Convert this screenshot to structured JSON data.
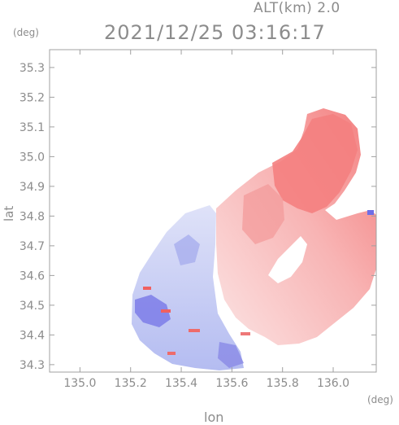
{
  "header": {
    "altitude_label": "ALT(km) 2.0",
    "timestamp": "2021/12/25 03:16:17"
  },
  "axes": {
    "y_unit": "(deg)",
    "x_unit": "(deg)",
    "y_label": "lat",
    "x_label": "lon",
    "x_ticks": [
      "135.0",
      "135.2",
      "135.4",
      "135.6",
      "135.8",
      "136.0"
    ],
    "y_ticks": [
      "35.3",
      "35.2",
      "35.1",
      "35.0",
      "34.9",
      "34.8",
      "34.7",
      "34.6",
      "34.5",
      "34.4",
      "34.3"
    ],
    "x_range": [
      134.88,
      136.17
    ],
    "y_range": [
      34.275,
      35.36
    ]
  },
  "colors": {
    "positive": "#f47878",
    "positive_light": "#f9c6c6",
    "negative": "#7a7ae8",
    "negative_light": "#cfd4f5",
    "axis": "#a0a0a0"
  }
}
